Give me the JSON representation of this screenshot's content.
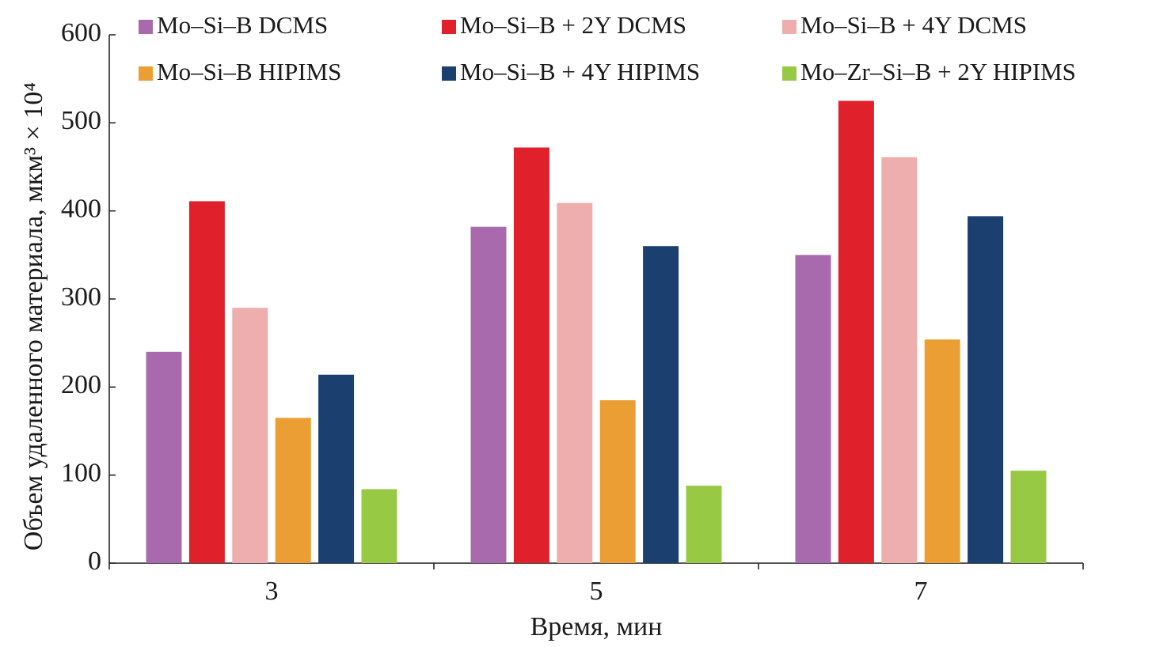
{
  "chart_data": {
    "type": "bar",
    "x_label": "Время, мин",
    "y_label": "Объем удаленного материала, мкм³ × 10⁴",
    "categories": [
      "3",
      "5",
      "7"
    ],
    "series": [
      {
        "name": "Mo–Si–B DCMS",
        "color": "#a96aad",
        "values": [
          240,
          382,
          350
        ]
      },
      {
        "name": "Mo–Si–B + 2Y DCMS",
        "color": "#e0202a",
        "values": [
          411,
          472,
          525
        ]
      },
      {
        "name": "Mo–Si–B + 4Y DCMS",
        "color": "#efaeae",
        "values": [
          290,
          409,
          461
        ]
      },
      {
        "name": "Mo–Si–B HIPIMS",
        "color": "#eb9e34",
        "values": [
          165,
          185,
          254
        ]
      },
      {
        "name": "Mo–Si–B + 4Y HIPIMS",
        "color": "#1b3f6e",
        "values": [
          214,
          360,
          394
        ]
      },
      {
        "name": "Mo–Zr–Si–B + 2Y HIPIMS",
        "color": "#98c945",
        "values": [
          84,
          88,
          105
        ]
      }
    ],
    "ylim": [
      0,
      600
    ],
    "yticks": [
      0,
      100,
      200,
      300,
      400,
      500,
      600
    ]
  }
}
